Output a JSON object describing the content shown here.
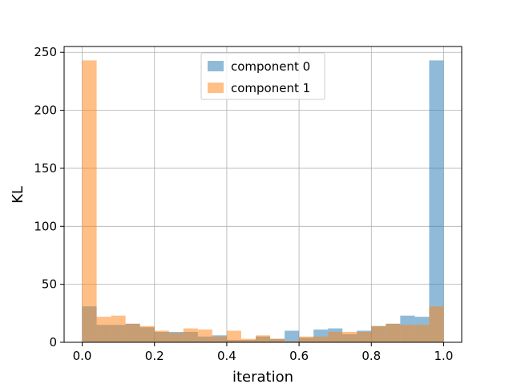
{
  "chart_data": {
    "type": "bar",
    "title": "",
    "xlabel": "iteration",
    "ylabel": "KL",
    "xlim": [
      -0.05,
      1.05
    ],
    "ylim": [
      0,
      255
    ],
    "x_ticks": [
      0.0,
      0.2,
      0.4,
      0.6,
      0.8,
      1.0
    ],
    "x_tick_labels": [
      "0.0",
      "0.2",
      "0.4",
      "0.6",
      "0.8",
      "1.0"
    ],
    "y_ticks": [
      0,
      50,
      100,
      150,
      200,
      250
    ],
    "y_tick_labels": [
      "0",
      "50",
      "100",
      "150",
      "200",
      "250"
    ],
    "grid": true,
    "legend_position": "upper center",
    "bin_edges": [
      0.0,
      0.04,
      0.08,
      0.12,
      0.16,
      0.2,
      0.24,
      0.28,
      0.32,
      0.36,
      0.4,
      0.44,
      0.48,
      0.52,
      0.56,
      0.6,
      0.64,
      0.68,
      0.72,
      0.76,
      0.8,
      0.84,
      0.88,
      0.92,
      0.96,
      1.0
    ],
    "series": [
      {
        "name": "component 0",
        "color": "#1f77b4",
        "opacity": 0.5,
        "values": [
          31,
          15,
          15,
          16,
          13,
          9,
          9,
          9,
          5,
          6,
          2,
          2,
          5,
          3,
          10,
          4,
          11,
          12,
          7,
          10,
          14,
          16,
          23,
          22,
          243
        ]
      },
      {
        "name": "component 1",
        "color": "#ff7f0e",
        "opacity": 0.5,
        "values": [
          243,
          22,
          23,
          16,
          14,
          10,
          8,
          12,
          11,
          5,
          10,
          3,
          6,
          3,
          1,
          5,
          5,
          9,
          9,
          9,
          14,
          16,
          15,
          15,
          31
        ]
      }
    ]
  }
}
